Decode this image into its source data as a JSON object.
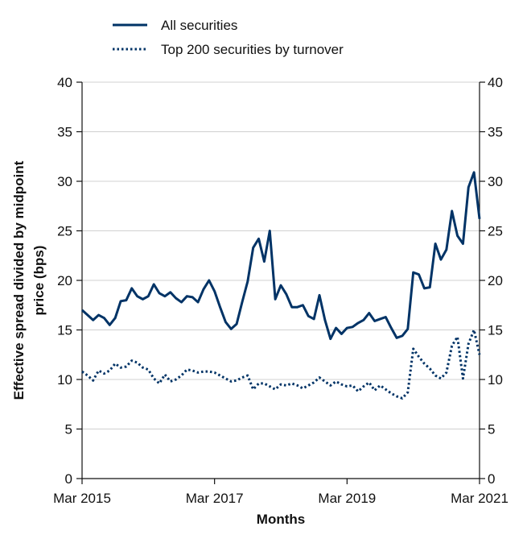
{
  "chart_data": {
    "type": "line",
    "xlabel": "Months",
    "ylabel_lines": [
      "Effective spread divided by midpoint",
      "price (bps)"
    ],
    "ylim": [
      0,
      40
    ],
    "yticks": [
      0,
      5,
      10,
      15,
      20,
      25,
      30,
      35,
      40
    ],
    "xlim": [
      "2015-03",
      "2021-03"
    ],
    "xticks": [
      {
        "value": "2015-03",
        "label": "Mar 2015"
      },
      {
        "value": "2017-03",
        "label": "Mar 2017"
      },
      {
        "value": "2019-03",
        "label": "Mar 2019"
      },
      {
        "value": "2021-03",
        "label": "Mar 2021"
      }
    ],
    "grid": true,
    "legend_position": "top",
    "x": [
      "2015-03",
      "2015-04",
      "2015-05",
      "2015-06",
      "2015-07",
      "2015-08",
      "2015-09",
      "2015-10",
      "2015-11",
      "2015-12",
      "2016-01",
      "2016-02",
      "2016-03",
      "2016-04",
      "2016-05",
      "2016-06",
      "2016-07",
      "2016-08",
      "2016-09",
      "2016-10",
      "2016-11",
      "2016-12",
      "2017-01",
      "2017-02",
      "2017-03",
      "2017-04",
      "2017-05",
      "2017-06",
      "2017-07",
      "2017-08",
      "2017-09",
      "2017-10",
      "2017-11",
      "2017-12",
      "2018-01",
      "2018-02",
      "2018-03",
      "2018-04",
      "2018-05",
      "2018-06",
      "2018-07",
      "2018-08",
      "2018-09",
      "2018-10",
      "2018-11",
      "2018-12",
      "2019-01",
      "2019-02",
      "2019-03",
      "2019-04",
      "2019-05",
      "2019-06",
      "2019-07",
      "2019-08",
      "2019-09",
      "2019-10",
      "2019-11",
      "2019-12",
      "2020-01",
      "2020-02",
      "2020-03",
      "2020-04",
      "2020-05",
      "2020-06",
      "2020-07",
      "2020-08",
      "2020-09",
      "2020-10",
      "2020-11",
      "2020-12",
      "2021-01",
      "2021-02",
      "2021-03"
    ],
    "series": [
      {
        "name": "All securities",
        "color": "#003366",
        "style": "solid",
        "values": [
          17.0,
          16.5,
          16.0,
          16.5,
          16.2,
          15.5,
          16.2,
          17.9,
          18.0,
          19.2,
          18.4,
          18.1,
          18.4,
          19.6,
          18.7,
          18.4,
          18.8,
          18.2,
          17.8,
          18.4,
          18.3,
          17.8,
          19.1,
          20.0,
          18.9,
          17.3,
          15.8,
          15.1,
          15.6,
          17.8,
          19.9,
          23.3,
          24.2,
          21.9,
          25.0,
          18.1,
          19.5,
          18.6,
          17.3,
          17.3,
          17.5,
          16.4,
          16.1,
          18.5,
          16.0,
          14.1,
          15.2,
          14.6,
          15.2,
          15.3,
          15.7,
          16.0,
          16.7,
          15.9,
          16.1,
          16.3,
          15.2,
          14.2,
          14.4,
          15.1,
          20.8,
          20.6,
          19.2,
          19.3,
          23.7,
          22.1,
          23.1,
          27.0,
          24.5,
          23.7,
          29.4,
          30.9,
          26.2
        ]
      },
      {
        "name": "Top 200 securities by turnover",
        "color": "#003366",
        "style": "dotted",
        "values": [
          10.8,
          10.4,
          9.9,
          10.9,
          10.6,
          10.9,
          11.6,
          11.2,
          11.3,
          11.9,
          11.7,
          11.2,
          11.0,
          10.1,
          9.6,
          10.5,
          9.8,
          10.0,
          10.4,
          11.0,
          10.9,
          10.7,
          10.8,
          10.8,
          10.7,
          10.4,
          10.1,
          9.8,
          9.9,
          10.2,
          10.4,
          9.0,
          9.6,
          9.6,
          9.3,
          9.0,
          9.5,
          9.4,
          9.6,
          9.4,
          9.1,
          9.4,
          9.7,
          10.2,
          9.8,
          9.4,
          9.8,
          9.5,
          9.3,
          9.4,
          8.8,
          9.3,
          9.7,
          8.9,
          9.4,
          9.0,
          8.6,
          8.3,
          8.1,
          8.7,
          13.1,
          12.3,
          11.6,
          11.1,
          10.4,
          10.1,
          10.7,
          13.4,
          14.3,
          10.1,
          13.6,
          15.0,
          12.5
        ]
      }
    ]
  }
}
